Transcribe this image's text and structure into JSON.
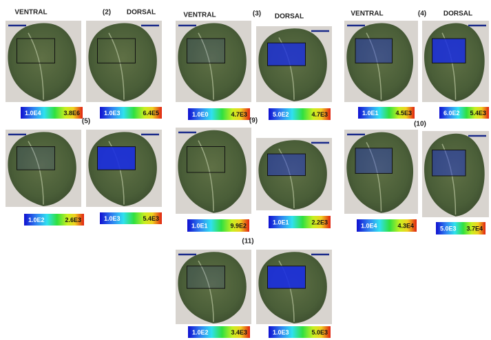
{
  "groups": [
    {
      "label": "(2)",
      "ventral": {
        "header": "VENTRAL",
        "scale_min": "1.0E4",
        "scale_max": "3.8E6"
      },
      "dorsal": {
        "header": "DORSAL",
        "scale_min": "1.0E3",
        "scale_max": "6.4E5"
      }
    },
    {
      "label": "(3)",
      "ventral": {
        "header": "VENTRAL",
        "scale_min": "1.0E0",
        "scale_max": "4.7E3"
      },
      "dorsal": {
        "header": "DORSAL",
        "scale_min": "5.0E2",
        "scale_max": "4.7E3"
      }
    },
    {
      "label": "(4)",
      "ventral": {
        "header": "VENTRAL",
        "scale_min": "1.0E1",
        "scale_max": "4.5E3"
      },
      "dorsal": {
        "header": "DORSAL",
        "scale_min": "6.0E2",
        "scale_max": "5.4E3"
      }
    },
    {
      "label": "(5)",
      "ventral": {
        "scale_min": "1.0E2",
        "scale_max": "2.6E3"
      },
      "dorsal": {
        "scale_min": "1.0E3",
        "scale_max": "5.4E3"
      }
    },
    {
      "label": "(9)",
      "ventral": {
        "scale_min": "1.0E1",
        "scale_max": "9.9E2"
      },
      "dorsal": {
        "scale_min": "1.0E1",
        "scale_max": "2.2E3"
      }
    },
    {
      "label": "(10)",
      "ventral": {
        "scale_min": "1.0E4",
        "scale_max": "4.3E4"
      },
      "dorsal": {
        "scale_min": "5.0E3",
        "scale_max": "3.7E4"
      }
    },
    {
      "label": "(11)",
      "ventral": {
        "scale_min": "1.0E2",
        "scale_max": "3.4E3"
      },
      "dorsal": {
        "scale_min": "1.0E3",
        "scale_max": "5.0E3"
      }
    }
  ]
}
